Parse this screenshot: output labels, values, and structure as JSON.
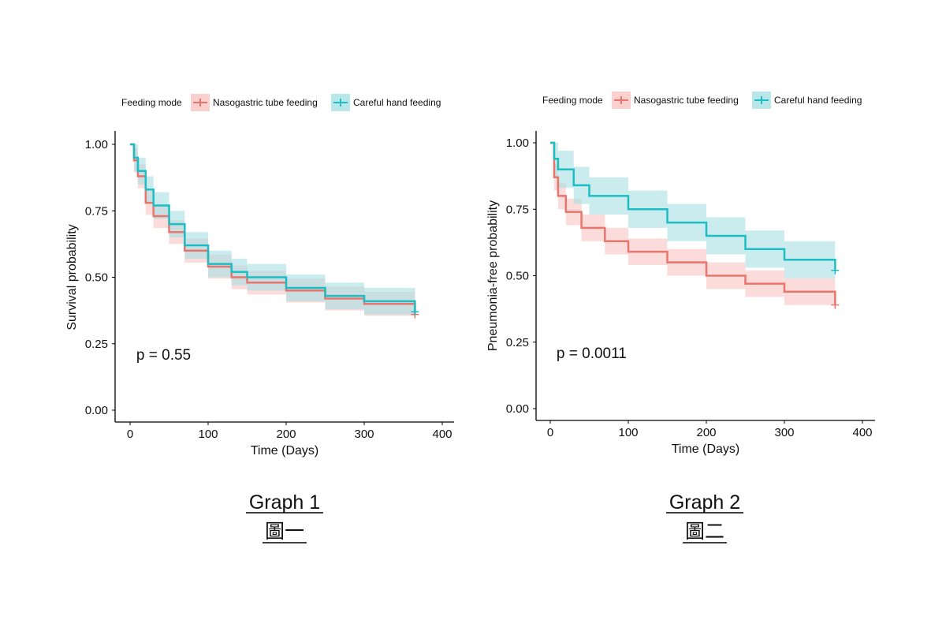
{
  "colors": {
    "ngt": "#E8766D",
    "chf": "#1DBDC4",
    "ngt_band": "#F8C4C2",
    "chf_band": "#A6E0E4"
  },
  "chart_data": [
    {
      "type": "line",
      "caption": "Graph 1",
      "caption_zh": "圖一",
      "xlabel": "Time (Days)",
      "ylabel": "Survival probability",
      "xlim": [
        0,
        400
      ],
      "ylim": [
        0,
        1
      ],
      "xticks": [
        "0",
        "100",
        "200",
        "300",
        "400"
      ],
      "yticks": [
        "0.00",
        "0.25",
        "0.50",
        "0.75",
        "1.00"
      ],
      "grid": false,
      "legend": {
        "position": "top",
        "title": "Feeding mode"
      },
      "annotation": "p = 0.55",
      "series": [
        {
          "name": "Nasogastric tube feeding",
          "color": "#E8766D",
          "x": [
            0,
            5,
            10,
            20,
            30,
            50,
            70,
            100,
            130,
            150,
            200,
            250,
            300,
            365
          ],
          "y": [
            1.0,
            0.94,
            0.88,
            0.78,
            0.73,
            0.67,
            0.6,
            0.54,
            0.5,
            0.48,
            0.45,
            0.42,
            0.4,
            0.36
          ],
          "ci_halfwidth": 0.045
        },
        {
          "name": "Careful hand feeding",
          "color": "#1DBDC4",
          "x": [
            0,
            5,
            10,
            20,
            30,
            50,
            70,
            100,
            130,
            150,
            200,
            250,
            300,
            365
          ],
          "y": [
            1.0,
            0.95,
            0.9,
            0.83,
            0.77,
            0.7,
            0.62,
            0.55,
            0.52,
            0.5,
            0.46,
            0.43,
            0.41,
            0.37
          ],
          "ci_halfwidth": 0.05
        }
      ]
    },
    {
      "type": "line",
      "caption": "Graph 2",
      "caption_zh": "圖二",
      "xlabel": "Time (Days)",
      "ylabel": "Pneumonia-free probability",
      "xlim": [
        0,
        400
      ],
      "ylim": [
        0,
        1
      ],
      "xticks": [
        "0",
        "100",
        "200",
        "300",
        "400"
      ],
      "yticks": [
        "0.00",
        "0.25",
        "0.50",
        "0.75",
        "1.00"
      ],
      "grid": false,
      "legend": {
        "position": "top",
        "title": "Feeding mode"
      },
      "annotation": "p = 0.0011",
      "series": [
        {
          "name": "Nasogastric tube feeding",
          "color": "#E8766D",
          "x": [
            0,
            5,
            10,
            20,
            40,
            70,
            100,
            150,
            200,
            250,
            300,
            365
          ],
          "y": [
            1.0,
            0.87,
            0.8,
            0.74,
            0.68,
            0.63,
            0.59,
            0.55,
            0.5,
            0.47,
            0.44,
            0.39
          ],
          "ci_halfwidth": 0.05
        },
        {
          "name": "Careful hand feeding",
          "color": "#1DBDC4",
          "x": [
            0,
            5,
            10,
            30,
            50,
            100,
            150,
            200,
            250,
            300,
            365
          ],
          "y": [
            1.0,
            0.94,
            0.9,
            0.84,
            0.8,
            0.75,
            0.7,
            0.65,
            0.6,
            0.56,
            0.52
          ],
          "ci_halfwidth": 0.07
        }
      ]
    }
  ]
}
